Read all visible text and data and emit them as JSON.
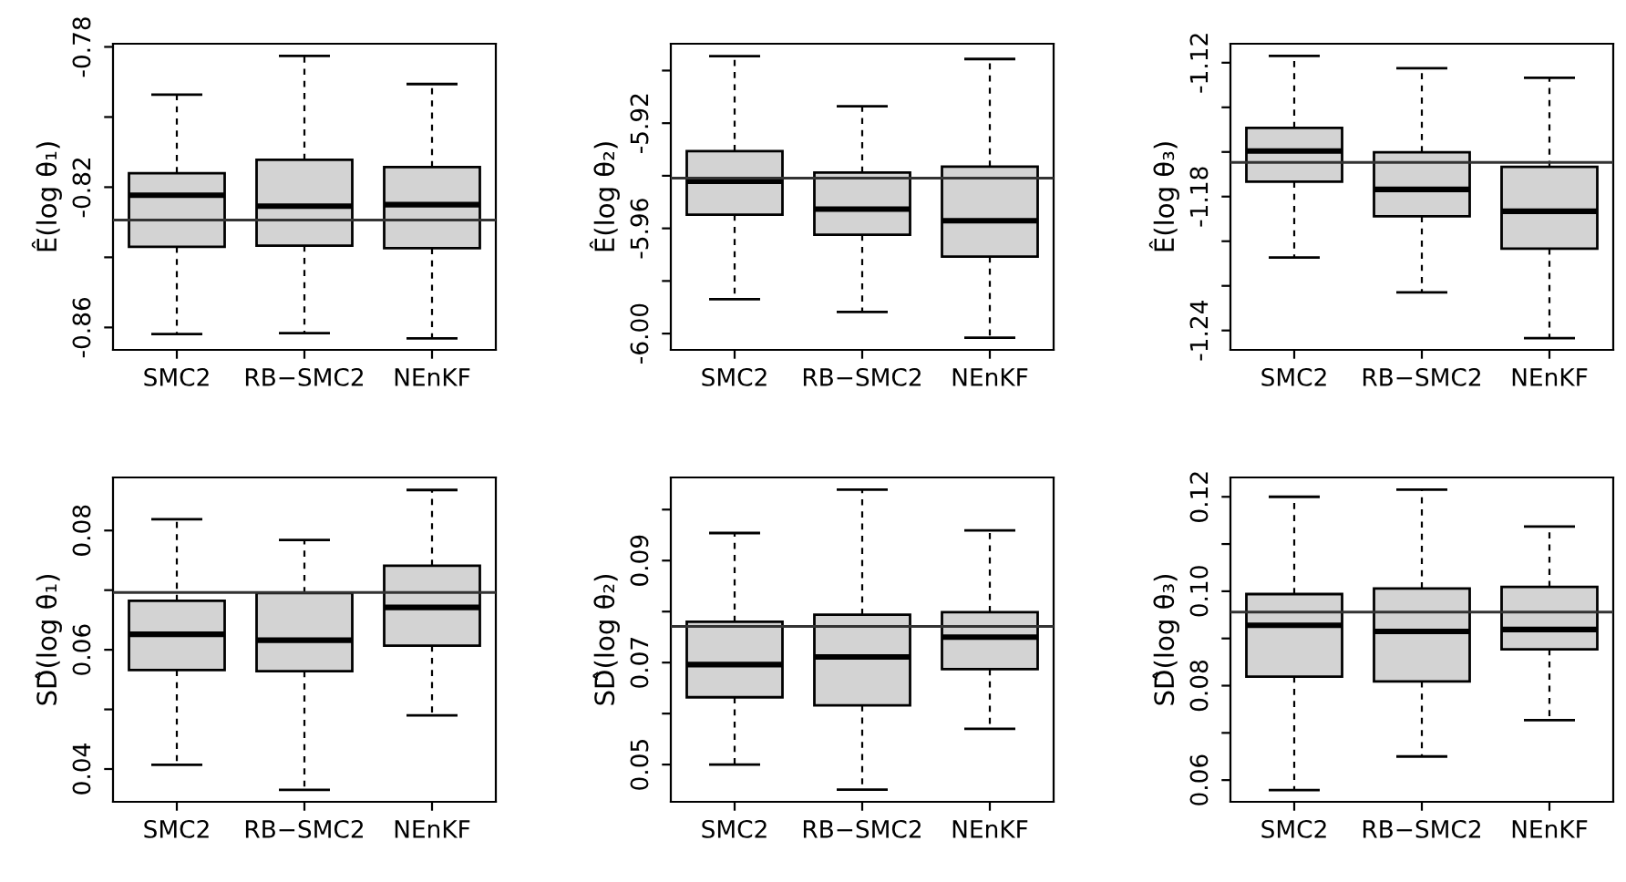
{
  "chart_data": [
    {
      "type": "box",
      "ylabel": "Ê(log θ₁)",
      "categories": [
        "SMC2",
        "RB−SMC2",
        "NEnKF"
      ],
      "line_style": "dashed",
      "ylim": [
        -0.8664,
        -0.7791
      ],
      "yticks": [
        -0.78,
        {
          "value": -0.8,
          "label": null
        },
        -0.82,
        {
          "value": -0.84,
          "label": null
        },
        -0.86
      ],
      "series": [
        {
          "color": "#d3d3d3",
          "boxes": [
            {
              "low": -0.8619,
              "q1": -0.837,
              "median": -0.8223,
              "q3": -0.816,
              "high": -0.7936
            },
            {
              "low": -0.8616,
              "q1": -0.8367,
              "median": -0.8254,
              "q3": -0.8122,
              "high": -0.7826
            },
            {
              "low": -0.8631,
              "q1": -0.8374,
              "median": -0.825,
              "q3": -0.8143,
              "high": -0.7906
            }
          ]
        }
      ],
      "ref_lines": [
        {
          "axis": "y",
          "value": -0.8294,
          "color": "#333333"
        }
      ]
    },
    {
      "type": "box",
      "ylabel": "Ê(log θ₂)",
      "categories": [
        "SMC2",
        "RB−SMC2",
        "NEnKF"
      ],
      "line_style": "dashed",
      "ylim": [
        -6.0062,
        -5.8898
      ],
      "yticks": [
        {
          "value": -5.9,
          "label": null
        },
        -5.92,
        {
          "value": -5.94,
          "label": null
        },
        -5.96,
        {
          "value": -5.98,
          "label": null
        },
        "-6.00"
      ],
      "series": [
        {
          "color": "#d3d3d3",
          "boxes": [
            {
              "low": -5.9869,
              "q1": -5.9548,
              "median": -5.9421,
              "q3": -5.9306,
              "high": -5.8945
            },
            {
              "low": -5.9918,
              "q1": -5.9624,
              "median": -5.9527,
              "q3": -5.9388,
              "high": -5.9136
            },
            {
              "low": -6.0016,
              "q1": -5.9707,
              "median": -5.9571,
              "q3": -5.9365,
              "high": -5.8956
            }
          ]
        }
      ],
      "ref_lines": [
        {
          "axis": "y",
          "value": -5.9409,
          "color": "#333333"
        }
      ]
    },
    {
      "type": "box",
      "ylabel": "Ê(log θ₃)",
      "categories": [
        "SMC2",
        "RB−SMC2",
        "NEnKF"
      ],
      "line_style": "dashed",
      "ylim": [
        -1.2487,
        -1.1115
      ],
      "yticks": [
        -1.12,
        {
          "value": -1.14,
          "label": null
        },
        {
          "value": -1.16,
          "label": null
        },
        -1.18,
        {
          "value": -1.2,
          "label": null
        },
        {
          "value": -1.22,
          "label": null
        },
        -1.24
      ],
      "series": [
        {
          "color": "#d3d3d3",
          "boxes": [
            {
              "low": -1.2073,
              "q1": -1.1733,
              "median": -1.1596,
              "q3": -1.1492,
              "high": -1.117
            },
            {
              "low": -1.2229,
              "q1": -1.1888,
              "median": -1.1768,
              "q3": -1.1601,
              "high": -1.1225
            },
            {
              "low": -1.2434,
              "q1": -1.2033,
              "median": -1.1866,
              "q3": -1.1667,
              "high": -1.1268
            }
          ]
        }
      ],
      "ref_lines": [
        {
          "axis": "y",
          "value": -1.1647,
          "color": "#333333"
        }
      ]
    },
    {
      "type": "box",
      "ylabel": "SD̂(log θ₁)",
      "categories": [
        "SMC2",
        "RB−SMC2",
        "NEnKF"
      ],
      "line_style": "dashed",
      "ylim": [
        0.0345,
        0.0889
      ],
      "yticks": [
        0.04,
        {
          "value": 0.05,
          "label": null
        },
        0.06,
        {
          "value": 0.07,
          "label": null
        },
        0.08
      ],
      "series": [
        {
          "color": "#d3d3d3",
          "boxes": [
            {
              "low": 0.0407,
              "q1": 0.0566,
              "median": 0.0626,
              "q3": 0.0682,
              "high": 0.0819
            },
            {
              "low": 0.0365,
              "q1": 0.0564,
              "median": 0.0616,
              "q3": 0.0695,
              "high": 0.0784
            },
            {
              "low": 0.049,
              "q1": 0.0607,
              "median": 0.0671,
              "q3": 0.0741,
              "high": 0.0868
            }
          ]
        }
      ],
      "ref_lines": [
        {
          "axis": "y",
          "value": 0.0696,
          "color": "#333333"
        }
      ]
    },
    {
      "type": "box",
      "ylabel": "SD̂(log θ₂)",
      "categories": [
        "SMC2",
        "RB−SMC2",
        "NEnKF"
      ],
      "line_style": "dashed",
      "ylim": [
        0.0427,
        0.1063
      ],
      "yticks": [
        0.05,
        {
          "value": 0.06,
          "label": null
        },
        0.07,
        {
          "value": 0.08,
          "label": null
        },
        0.09,
        {
          "value": 0.1,
          "label": null
        }
      ],
      "series": [
        {
          "color": "#d3d3d3",
          "boxes": [
            {
              "low": 0.05,
              "q1": 0.0632,
              "median": 0.0696,
              "q3": 0.078,
              "high": 0.0954
            },
            {
              "low": 0.0451,
              "q1": 0.0616,
              "median": 0.0711,
              "q3": 0.0794,
              "high": 0.1039
            },
            {
              "low": 0.057,
              "q1": 0.0687,
              "median": 0.075,
              "q3": 0.0799,
              "high": 0.0959
            }
          ]
        }
      ],
      "ref_lines": [
        {
          "axis": "y",
          "value": 0.0771,
          "color": "#333333"
        }
      ]
    },
    {
      "type": "box",
      "ylabel": "SD̂(log θ₃)",
      "categories": [
        "SMC2",
        "RB−SMC2",
        "NEnKF"
      ],
      "line_style": "dashed",
      "ylim": [
        0.0554,
        0.1241
      ],
      "yticks": [
        0.06,
        {
          "value": 0.07,
          "label": null
        },
        0.08,
        {
          "value": 0.09,
          "label": null
        },
        "0.10",
        {
          "value": 0.11,
          "label": null
        },
        0.12
      ],
      "series": [
        {
          "color": "#d3d3d3",
          "boxes": [
            {
              "low": 0.0579,
              "q1": 0.0819,
              "median": 0.0928,
              "q3": 0.0994,
              "high": 0.12
            },
            {
              "low": 0.065,
              "q1": 0.0809,
              "median": 0.0915,
              "q3": 0.1006,
              "high": 0.1215
            },
            {
              "low": 0.0727,
              "q1": 0.0877,
              "median": 0.0919,
              "q3": 0.1009,
              "high": 0.1137
            }
          ]
        }
      ],
      "ref_lines": [
        {
          "axis": "y",
          "value": 0.0956,
          "color": "#333333"
        }
      ]
    }
  ]
}
